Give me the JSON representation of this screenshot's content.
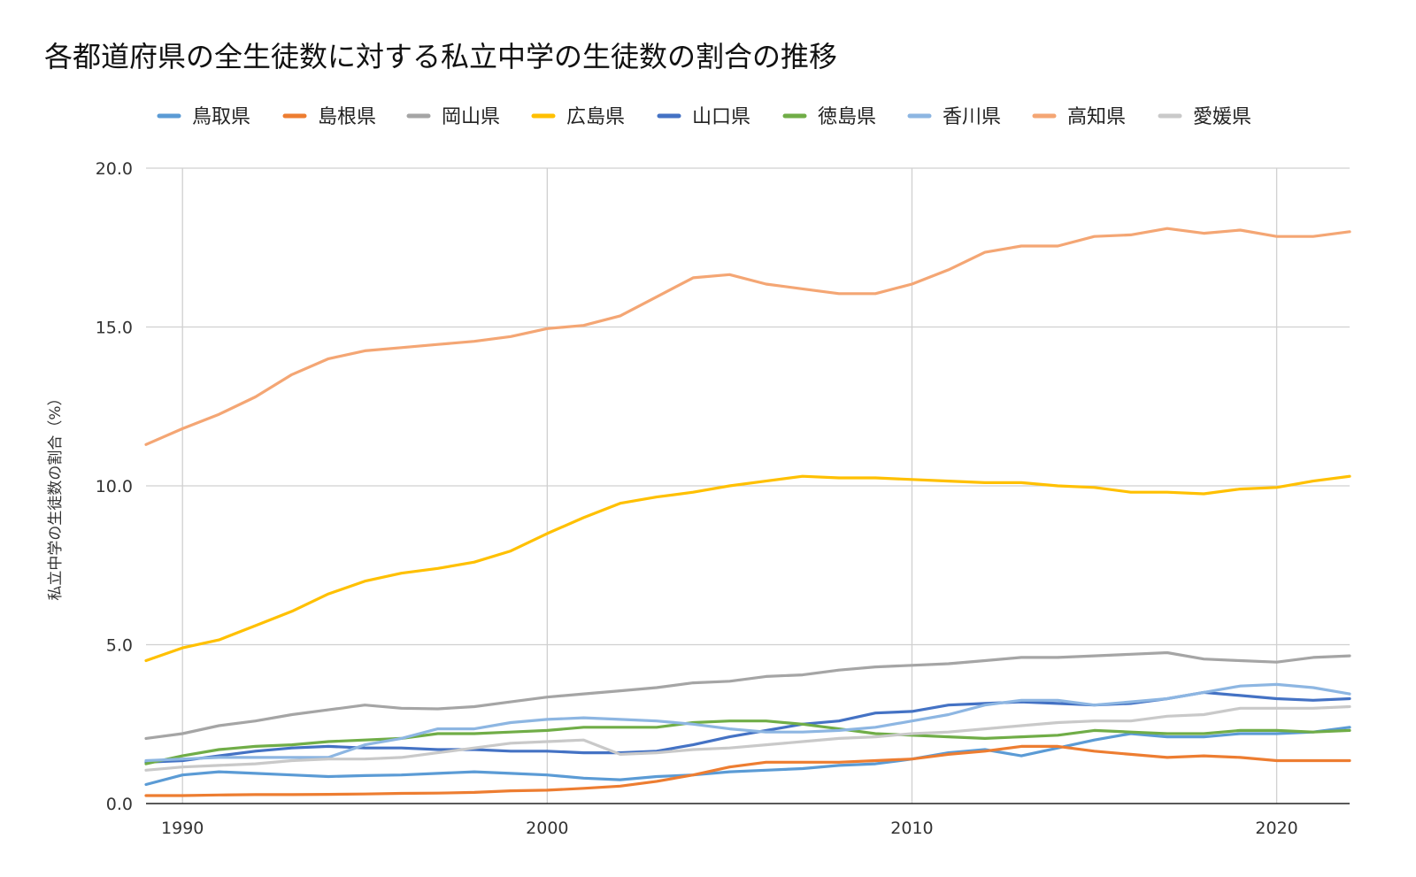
{
  "chart_data": {
    "type": "line",
    "title": "各都道府県の全生徒数に対する私立中学の生徒数の割合の推移",
    "xlabel": "",
    "ylabel": "私立中学の生徒数の割合（%）",
    "xlim": [
      1989,
      2022
    ],
    "ylim": [
      0,
      20
    ],
    "x_ticks": [
      1990,
      2000,
      2010,
      2020
    ],
    "y_ticks": [
      0,
      5,
      10,
      15,
      20
    ],
    "y_tick_labels": [
      "0.0",
      "5.0",
      "10.0",
      "15.0",
      "20.0"
    ],
    "grid": true,
    "legend_position": "top",
    "x": [
      1989,
      1990,
      1991,
      1992,
      1993,
      1994,
      1995,
      1996,
      1997,
      1998,
      1999,
      2000,
      2001,
      2002,
      2003,
      2004,
      2005,
      2006,
      2007,
      2008,
      2009,
      2010,
      2011,
      2012,
      2013,
      2014,
      2015,
      2016,
      2017,
      2018,
      2019,
      2020,
      2021,
      2022
    ],
    "series": [
      {
        "name": "鳥取県",
        "color": "#5b9bd5",
        "values": [
          0.6,
          0.9,
          1.0,
          0.95,
          0.9,
          0.85,
          0.88,
          0.9,
          0.95,
          1.0,
          0.95,
          0.9,
          0.8,
          0.75,
          0.85,
          0.9,
          1.0,
          1.05,
          1.1,
          1.2,
          1.25,
          1.4,
          1.6,
          1.7,
          1.5,
          1.75,
          2.0,
          2.2,
          2.1,
          2.1,
          2.2,
          2.2,
          2.25,
          2.4
        ]
      },
      {
        "name": "島根県",
        "color": "#ed7d31",
        "values": [
          0.25,
          0.25,
          0.27,
          0.28,
          0.28,
          0.29,
          0.3,
          0.32,
          0.33,
          0.35,
          0.4,
          0.42,
          0.48,
          0.55,
          0.7,
          0.9,
          1.15,
          1.3,
          1.3,
          1.3,
          1.35,
          1.4,
          1.55,
          1.65,
          1.8,
          1.8,
          1.65,
          1.55,
          1.45,
          1.5,
          1.45,
          1.35,
          1.35,
          1.35
        ]
      },
      {
        "name": "岡山県",
        "color": "#a5a5a5",
        "values": [
          2.05,
          2.2,
          2.45,
          2.6,
          2.8,
          2.95,
          3.1,
          3.0,
          2.98,
          3.05,
          3.2,
          3.35,
          3.45,
          3.55,
          3.65,
          3.8,
          3.85,
          4.0,
          4.05,
          4.2,
          4.3,
          4.35,
          4.4,
          4.5,
          4.6,
          4.6,
          4.65,
          4.7,
          4.75,
          4.55,
          4.5,
          4.45,
          4.6,
          4.65
        ]
      },
      {
        "name": "広島県",
        "color": "#ffc000",
        "values": [
          4.5,
          4.9,
          5.15,
          5.6,
          6.05,
          6.6,
          7.0,
          7.25,
          7.4,
          7.6,
          7.95,
          8.5,
          9.0,
          9.45,
          9.65,
          9.8,
          10.0,
          10.15,
          10.3,
          10.25,
          10.25,
          10.2,
          10.15,
          10.1,
          10.1,
          10.0,
          9.95,
          9.8,
          9.8,
          9.75,
          9.9,
          9.95,
          10.15,
          10.3
        ]
      },
      {
        "name": "山口県",
        "color": "#4472c4",
        "values": [
          1.3,
          1.35,
          1.5,
          1.65,
          1.75,
          1.8,
          1.75,
          1.75,
          1.7,
          1.7,
          1.65,
          1.65,
          1.6,
          1.6,
          1.65,
          1.85,
          2.1,
          2.3,
          2.5,
          2.6,
          2.85,
          2.9,
          3.1,
          3.15,
          3.2,
          3.15,
          3.1,
          3.15,
          3.3,
          3.5,
          3.4,
          3.3,
          3.25,
          3.3
        ]
      },
      {
        "name": "徳島県",
        "color": "#70ad47",
        "values": [
          1.25,
          1.5,
          1.7,
          1.8,
          1.85,
          1.95,
          2.0,
          2.05,
          2.2,
          2.2,
          2.25,
          2.3,
          2.4,
          2.4,
          2.4,
          2.55,
          2.6,
          2.6,
          2.5,
          2.35,
          2.2,
          2.15,
          2.1,
          2.05,
          2.1,
          2.15,
          2.3,
          2.25,
          2.2,
          2.2,
          2.3,
          2.3,
          2.25,
          2.3
        ]
      },
      {
        "name": "香川県",
        "color": "#8db6e2",
        "values": [
          1.35,
          1.4,
          1.45,
          1.45,
          1.45,
          1.45,
          1.85,
          2.05,
          2.35,
          2.35,
          2.55,
          2.65,
          2.7,
          2.65,
          2.6,
          2.5,
          2.35,
          2.25,
          2.25,
          2.3,
          2.4,
          2.6,
          2.8,
          3.1,
          3.25,
          3.25,
          3.1,
          3.2,
          3.3,
          3.5,
          3.7,
          3.75,
          3.65,
          3.45
        ]
      },
      {
        "name": "高知県",
        "color": "#f4a674",
        "values": [
          11.3,
          11.8,
          12.25,
          12.8,
          13.5,
          14.0,
          14.25,
          14.35,
          14.45,
          14.55,
          14.7,
          14.95,
          15.05,
          15.35,
          15.95,
          16.55,
          16.65,
          16.35,
          16.2,
          16.05,
          16.05,
          16.35,
          16.8,
          17.35,
          17.55,
          17.55,
          17.85,
          17.9,
          18.1,
          17.95,
          18.05,
          17.85,
          17.85,
          18.0
        ]
      },
      {
        "name": "愛媛県",
        "color": "#c9c9c9",
        "values": [
          1.05,
          1.15,
          1.2,
          1.25,
          1.35,
          1.4,
          1.4,
          1.45,
          1.6,
          1.75,
          1.9,
          1.95,
          2.0,
          1.55,
          1.6,
          1.7,
          1.75,
          1.85,
          1.95,
          2.05,
          2.1,
          2.2,
          2.25,
          2.35,
          2.45,
          2.55,
          2.6,
          2.6,
          2.75,
          2.8,
          3.0,
          3.0,
          3.0,
          3.05
        ]
      }
    ]
  }
}
